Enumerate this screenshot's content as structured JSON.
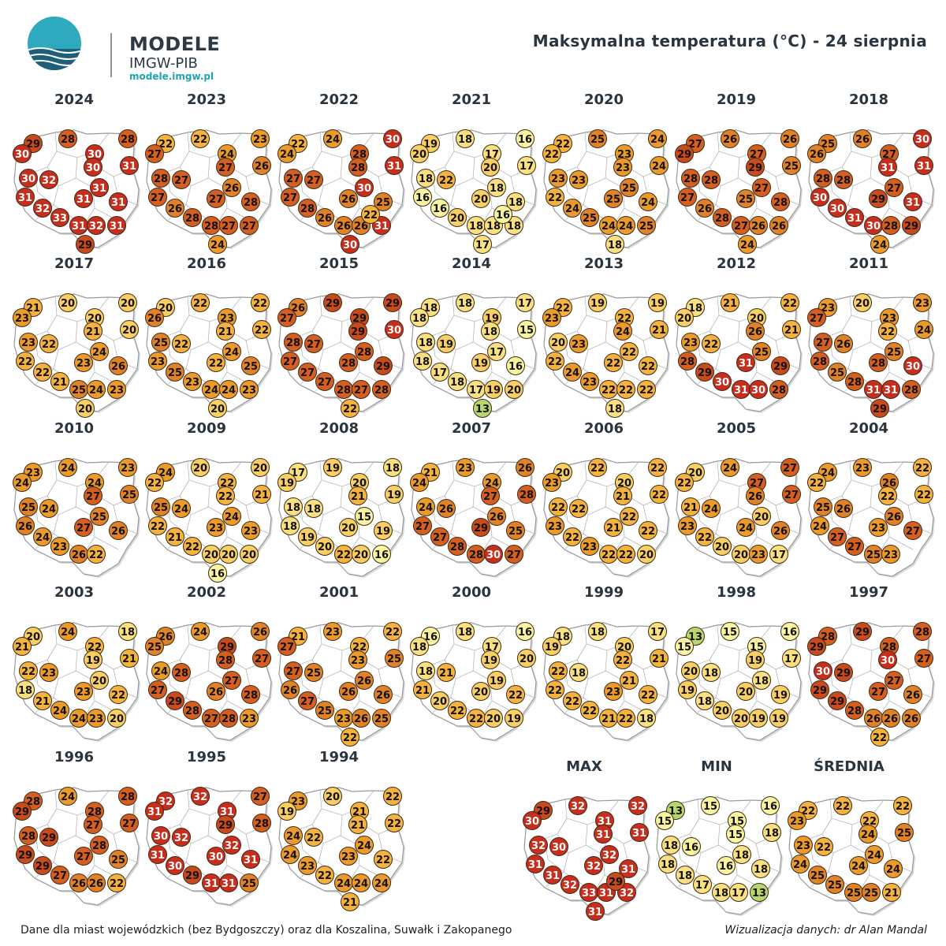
{
  "logo": {
    "abbr": "IMGW",
    "name": "MODELE",
    "org": "IMGW-PIB",
    "url": "modele.imgw.pl"
  },
  "title": "Maksymalna temperatura (°C) - 24 sierpnia",
  "footer": {
    "source": "Dane dla miast wojewódzkich (bez Bydgoszczy) oraz dla Koszalina, Suwałk i Zakopanego",
    "credit": "Wizualizacja danych: dr Alan Mandal"
  },
  "colors": {
    "13": "#b8d66b",
    "15-16": "#faf3a0",
    "17-18": "#fbe07f",
    "19-20": "#f9cf63",
    "21-22": "#f5b23e",
    "23-24": "#ec9a2a",
    "25-26": "#e28226",
    "27-28": "#d65e1e",
    "29": "#c94a1a",
    "30-33": "#c92e1d"
  },
  "panels": [
    {
      "label": "2024",
      "values": [
        29,
        28,
        28,
        30,
        30,
        31,
        30,
        32,
        30,
        31,
        31,
        31,
        31,
        32,
        33,
        31,
        32,
        31,
        29
      ]
    },
    {
      "label": "2023",
      "values": [
        22,
        22,
        23,
        27,
        24,
        26,
        28,
        27,
        27,
        26,
        27,
        27,
        28,
        26,
        28,
        28,
        27,
        27,
        24
      ]
    },
    {
      "label": "2022",
      "values": [
        22,
        24,
        30,
        24,
        28,
        31,
        27,
        27,
        28,
        30,
        27,
        26,
        25,
        28,
        26,
        26,
        26,
        31,
        30,
        22
      ]
    },
    {
      "label": "2021",
      "values": [
        19,
        18,
        16,
        20,
        17,
        17,
        18,
        22,
        20,
        18,
        16,
        20,
        18,
        16,
        20,
        18,
        18,
        18,
        17,
        16
      ]
    },
    {
      "label": "2020",
      "values": [
        22,
        25,
        24,
        22,
        23,
        24,
        23,
        23,
        23,
        25,
        22,
        25,
        24,
        24,
        25,
        24,
        24,
        25,
        18
      ]
    },
    {
      "label": "2019",
      "values": [
        27,
        26,
        26,
        29,
        27,
        25,
        28,
        28,
        29,
        27,
        27,
        25,
        28,
        26,
        28,
        27,
        26,
        26,
        24
      ]
    },
    {
      "label": "2018",
      "values": [
        25,
        26,
        30,
        26,
        27,
        31,
        28,
        28,
        31,
        27,
        30,
        29,
        31,
        30,
        31,
        30,
        28,
        29,
        24
      ]
    },
    {
      "label": "2017",
      "values": [
        21,
        20,
        20,
        23,
        20,
        20,
        23,
        22,
        21,
        24,
        22,
        23,
        26,
        22,
        21,
        25,
        24,
        23,
        20
      ]
    },
    {
      "label": "2016",
      "values": [
        20,
        22,
        22,
        26,
        23,
        22,
        25,
        22,
        21,
        24,
        23,
        22,
        25,
        25,
        23,
        24,
        24,
        23,
        20
      ]
    },
    {
      "label": "2015",
      "values": [
        26,
        29,
        29,
        27,
        29,
        30,
        28,
        27,
        29,
        28,
        27,
        28,
        29,
        27,
        27,
        28,
        27,
        28,
        22
      ]
    },
    {
      "label": "2014",
      "values": [
        18,
        18,
        17,
        18,
        19,
        15,
        18,
        19,
        18,
        17,
        18,
        19,
        16,
        17,
        18,
        17,
        19,
        20,
        13
      ]
    },
    {
      "label": "2013",
      "values": [
        22,
        19,
        19,
        23,
        22,
        21,
        20,
        23,
        24,
        22,
        22,
        22,
        22,
        24,
        23,
        22,
        22,
        22,
        18
      ]
    },
    {
      "label": "2012",
      "values": [
        18,
        21,
        22,
        20,
        20,
        21,
        23,
        22,
        26,
        25,
        28,
        31,
        29,
        29,
        30,
        31,
        30,
        28
      ]
    },
    {
      "label": "2011",
      "values": [
        23,
        20,
        23,
        27,
        23,
        24,
        27,
        26,
        22,
        25,
        28,
        28,
        30,
        25,
        28,
        31,
        31,
        28,
        29
      ]
    },
    {
      "label": "2010",
      "values": [
        23,
        24,
        23,
        24,
        24,
        25,
        25,
        24,
        27,
        25,
        26,
        27,
        26,
        24,
        23,
        26,
        22
      ]
    },
    {
      "label": "2009",
      "values": [
        24,
        20,
        20,
        22,
        22,
        21,
        25,
        24,
        22,
        24,
        22,
        23,
        23,
        21,
        22,
        20,
        20,
        20,
        16
      ]
    },
    {
      "label": "2008",
      "values": [
        17,
        19,
        18,
        19,
        20,
        19,
        18,
        18,
        21,
        15,
        18,
        20,
        19,
        19,
        20,
        22,
        20,
        16
      ]
    },
    {
      "label": "2007",
      "values": [
        21,
        23,
        26,
        24,
        24,
        28,
        24,
        26,
        27,
        26,
        27,
        29,
        25,
        27,
        28,
        28,
        30,
        27
      ]
    },
    {
      "label": "2006",
      "values": [
        20,
        22,
        22,
        23,
        20,
        22,
        22,
        22,
        21,
        22,
        23,
        21,
        22,
        22,
        23,
        22,
        22,
        20
      ]
    },
    {
      "label": "2005",
      "values": [
        20,
        24,
        27,
        22,
        27,
        27,
        21,
        24,
        26,
        20,
        23,
        24,
        26,
        22,
        20,
        20,
        23,
        17
      ]
    },
    {
      "label": "2004",
      "values": [
        24,
        23,
        22,
        22,
        26,
        22,
        25,
        26,
        22,
        26,
        24,
        23,
        27,
        27,
        27,
        25,
        23
      ]
    },
    {
      "label": "2003",
      "values": [
        20,
        24,
        18,
        21,
        22,
        21,
        22,
        23,
        19,
        20,
        18,
        23,
        22,
        21,
        24,
        24,
        23,
        20
      ]
    },
    {
      "label": "2002",
      "values": [
        26,
        24,
        26,
        25,
        29,
        27,
        24,
        28,
        28,
        27,
        27,
        26,
        28,
        29,
        28,
        27,
        28,
        23
      ]
    },
    {
      "label": "2001",
      "values": [
        21,
        23,
        22,
        27,
        22,
        25,
        27,
        25,
        23,
        26,
        26,
        26,
        26,
        27,
        25,
        23,
        26,
        25,
        22
      ]
    },
    {
      "label": "2000",
      "values": [
        16,
        18,
        16,
        18,
        17,
        20,
        18,
        21,
        19,
        19,
        21,
        20,
        22,
        20,
        22,
        22,
        20,
        19
      ]
    },
    {
      "label": "1999",
      "values": [
        18,
        18,
        17,
        19,
        20,
        21,
        22,
        18,
        22,
        21,
        22,
        23,
        22,
        22,
        22,
        21,
        22,
        18
      ]
    },
    {
      "label": "1998",
      "values": [
        13,
        15,
        16,
        15,
        15,
        17,
        20,
        18,
        19,
        18,
        19,
        20,
        19,
        18,
        20,
        20,
        19,
        19
      ]
    },
    {
      "label": "1997",
      "values": [
        28,
        29,
        28,
        29,
        28,
        27,
        30,
        29,
        30,
        27,
        29,
        27,
        26,
        29,
        28,
        26,
        26,
        26,
        22
      ]
    },
    {
      "label": "1996",
      "values": [
        28,
        24,
        28,
        29,
        28,
        27,
        28,
        29,
        27,
        28,
        29,
        27,
        25,
        29,
        27,
        26,
        26,
        22
      ]
    },
    {
      "label": "1995",
      "values": [
        32,
        32,
        27,
        31,
        31,
        28,
        30,
        32,
        29,
        32,
        31,
        30,
        31,
        30,
        29,
        31,
        31,
        25
      ]
    },
    {
      "label": "1994",
      "values": [
        23,
        20,
        22,
        19,
        21,
        22,
        24,
        22,
        21,
        24,
        24,
        23,
        22,
        23,
        22,
        24,
        24,
        24,
        21
      ]
    },
    {
      "label": "MAX",
      "values": [
        29,
        32,
        32,
        30,
        31,
        31,
        32,
        30,
        31,
        32,
        31,
        32,
        31,
        31,
        32,
        33,
        31,
        32,
        31,
        29
      ]
    },
    {
      "label": "MIN",
      "values": [
        13,
        15,
        16,
        15,
        15,
        18,
        18,
        16,
        15,
        18,
        18,
        16,
        18,
        18,
        17,
        18,
        17,
        13
      ]
    },
    {
      "label": "ŚREDNIA",
      "values": [
        22,
        22,
        22,
        23,
        22,
        25,
        23,
        22,
        24,
        24,
        24,
        24,
        24,
        25,
        25,
        25,
        25,
        21
      ]
    }
  ]
}
